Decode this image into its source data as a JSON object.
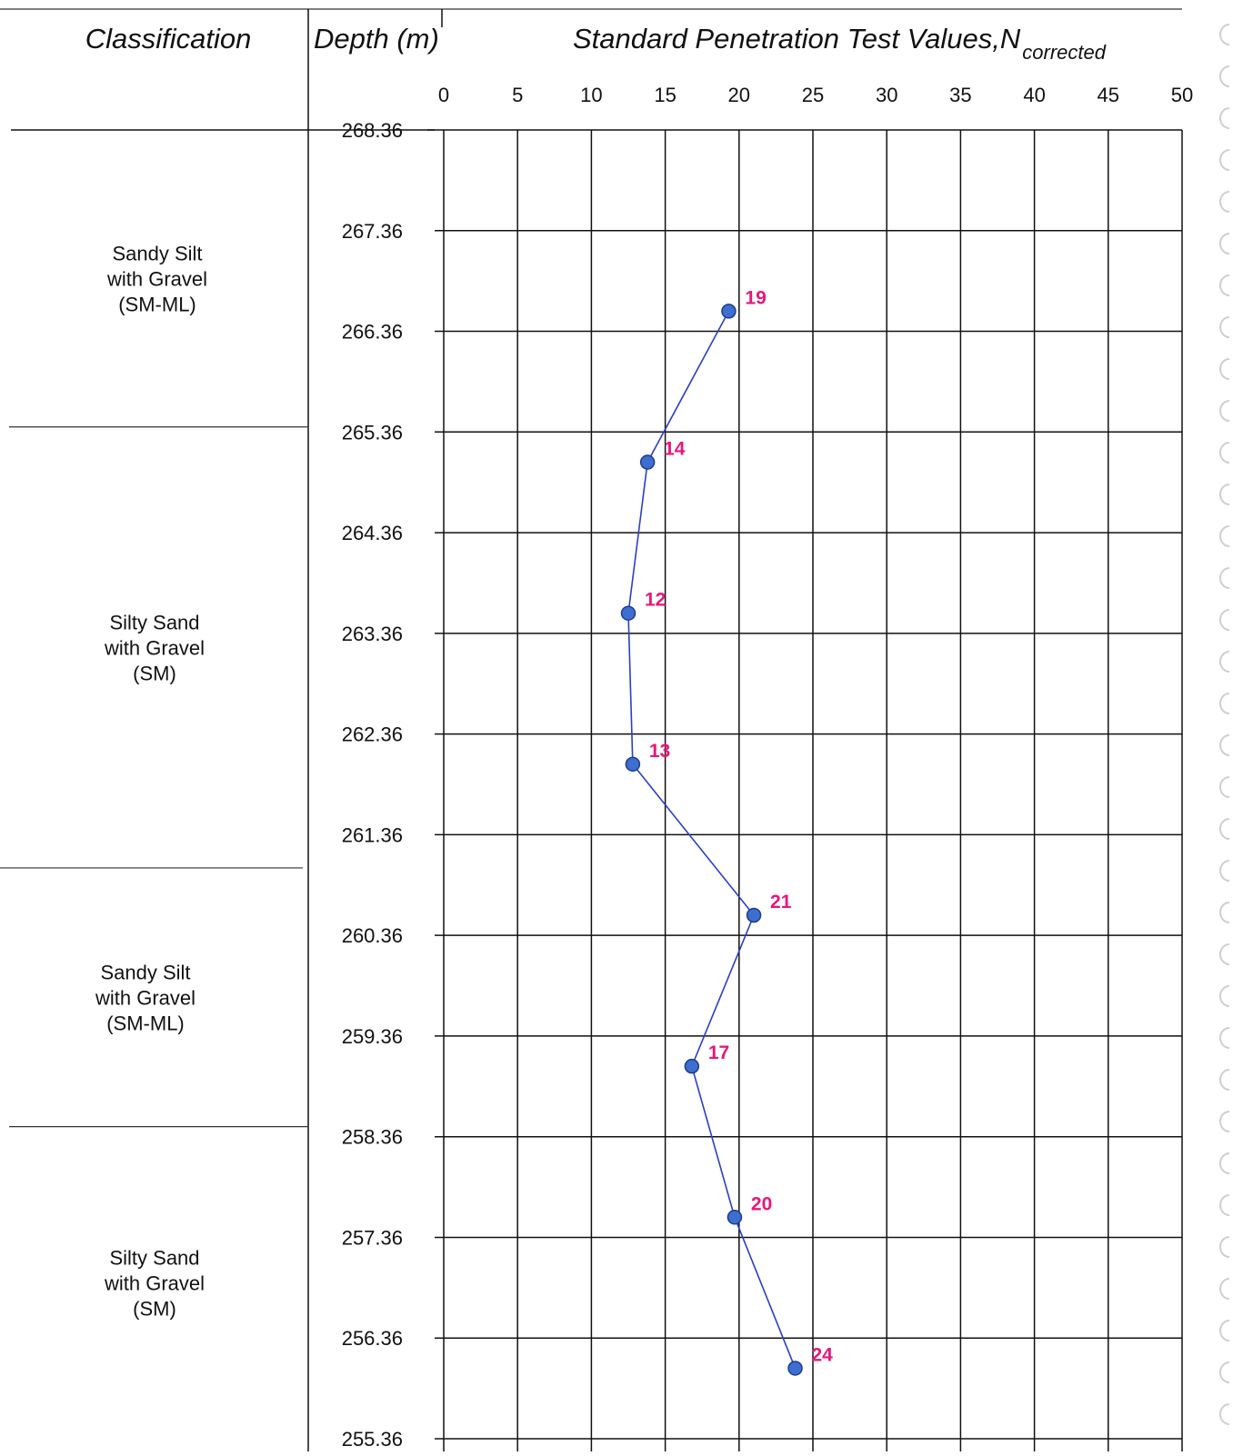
{
  "header": {
    "classification": "Classification",
    "depth": "Depth (m)",
    "spt_title": "Standard Penetration Test Values,N",
    "spt_subscript": "corrected"
  },
  "layers": [
    {
      "lines": [
        "Sandy Silt",
        "with Gravel",
        "(SM-ML)"
      ],
      "top": 268.36,
      "bottom": 265.41
    },
    {
      "lines": [
        "Silty Sand",
        "with Gravel",
        "(SM)"
      ],
      "top": 265.41,
      "bottom": 261.03
    },
    {
      "lines": [
        "Sandy Silt",
        "with Gravel",
        "(SM-ML)"
      ],
      "top": 261.03,
      "bottom": 258.46
    },
    {
      "lines": [
        "Silty Sand",
        "with Gravel",
        "(SM)"
      ],
      "top": 258.46,
      "bottom": 255.36
    }
  ],
  "colors": {
    "line": "#2a3fc4",
    "marker_fill": "#3c6fd0",
    "marker_stroke": "#1f3c8a",
    "label": "#e6177a"
  },
  "chart_data": {
    "type": "line",
    "title": "Standard Penetration Test Values,Ncorrected",
    "xlabel": "",
    "ylabel": "Depth (m)",
    "xlim": [
      0,
      50
    ],
    "ylim": [
      255.36,
      268.36
    ],
    "x_ticks": [
      "0",
      "5",
      "10",
      "15",
      "20",
      "25",
      "30",
      "35",
      "40",
      "45",
      "50"
    ],
    "y_ticks": [
      "268.36",
      "267.36",
      "266.36",
      "265.36",
      "264.36",
      "263.36",
      "262.36",
      "261.36",
      "260.36",
      "259.36",
      "258.36",
      "257.36",
      "256.36",
      "255.36"
    ],
    "grid": true,
    "points": [
      {
        "x": 19.3,
        "y": 266.56,
        "label": "19"
      },
      {
        "x": 13.8,
        "y": 265.06,
        "label": "14"
      },
      {
        "x": 12.5,
        "y": 263.56,
        "label": "12"
      },
      {
        "x": 12.8,
        "y": 262.06,
        "label": "13"
      },
      {
        "x": 21.0,
        "y": 260.56,
        "label": "21"
      },
      {
        "x": 16.8,
        "y": 259.06,
        "label": "17"
      },
      {
        "x": 19.7,
        "y": 257.56,
        "label": "20"
      },
      {
        "x": 23.8,
        "y": 256.06,
        "label": "24"
      }
    ]
  }
}
